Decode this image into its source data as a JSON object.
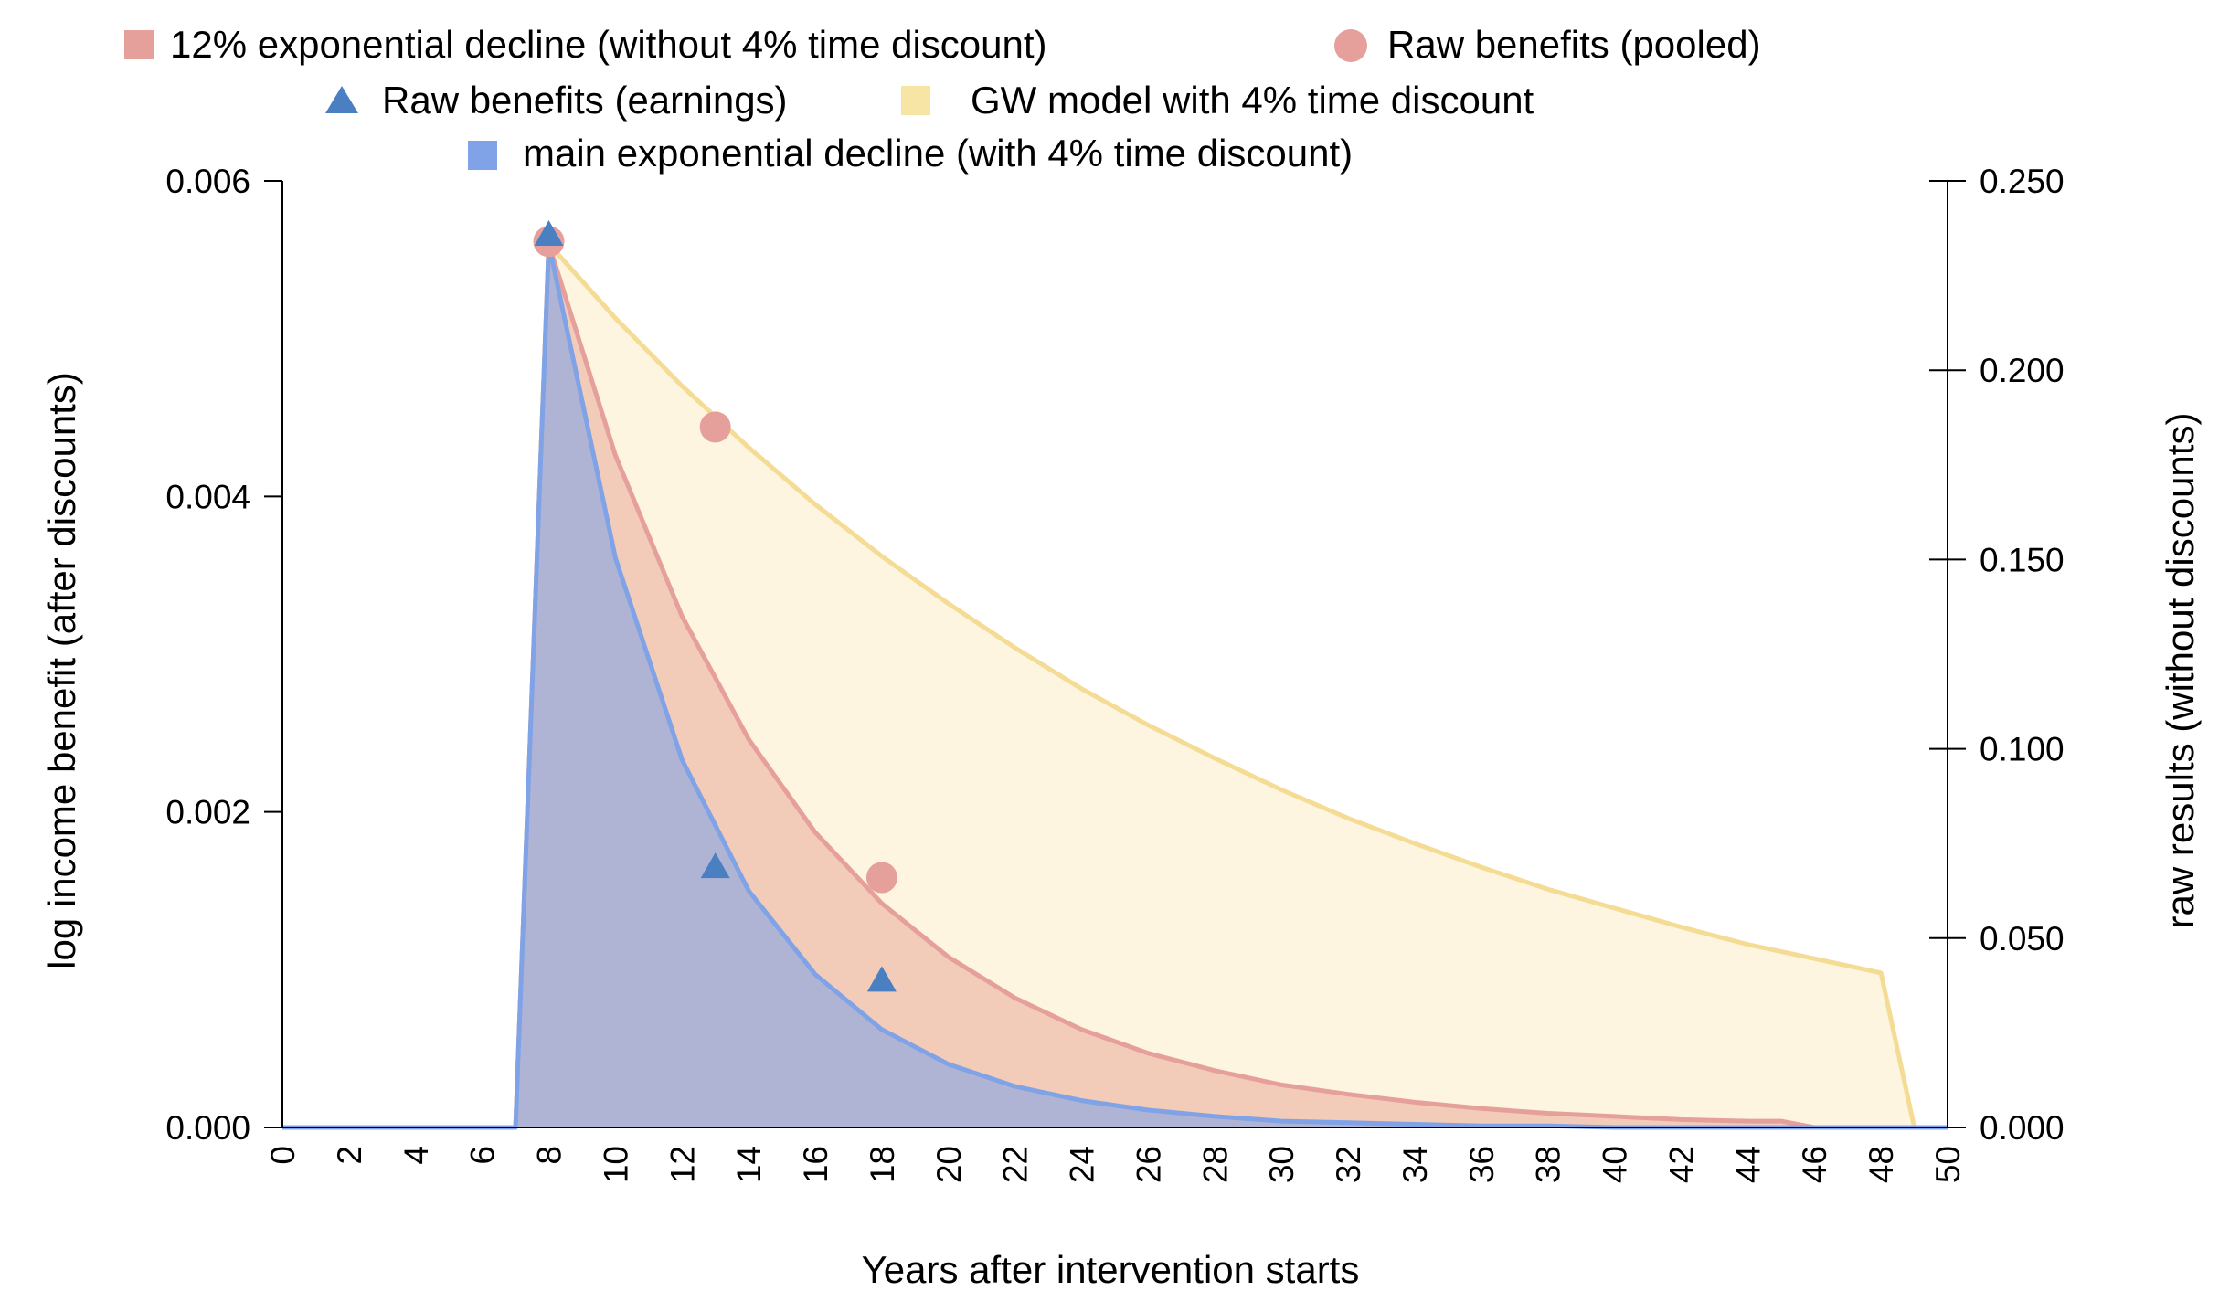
{
  "chart_data": {
    "type": "area",
    "xlabel": "Years after intervention starts",
    "ylabel_left": "log income benefit (after discounts)",
    "ylabel_right": "raw results (without discounts)",
    "xlim": [
      0,
      50
    ],
    "ylim_left": [
      0,
      0.006
    ],
    "ylim_right": [
      0,
      0.25
    ],
    "x_ticks": [
      0,
      2,
      4,
      6,
      8,
      10,
      12,
      14,
      16,
      18,
      20,
      22,
      24,
      26,
      28,
      30,
      32,
      34,
      36,
      38,
      40,
      42,
      44,
      46,
      48,
      50
    ],
    "y_ticks_left": [
      "0.000",
      "0.002",
      "0.004",
      "0.006"
    ],
    "y_ticks_left_values": [
      0,
      0.002,
      0.004,
      0.006
    ],
    "y_ticks_right": [
      "0.000",
      "0.050",
      "0.100",
      "0.150",
      "0.200",
      "0.250"
    ],
    "y_ticks_right_values": [
      0,
      0.05,
      0.1,
      0.15,
      0.2,
      0.25
    ],
    "grid": false,
    "legend_position": "top",
    "legend": [
      {
        "label": "12% exponential decline (without 4% time discount)",
        "marker": "square",
        "color": "#e6a09c"
      },
      {
        "label": "Raw benefits (pooled)",
        "marker": "circle",
        "color": "#e6a09c"
      },
      {
        "label": "Raw benefits  (earnings)",
        "marker": "triangle",
        "color": "#4a7fc1"
      },
      {
        "label": "GW model with 4% time discount",
        "marker": "square",
        "color": "#f6e5a4"
      },
      {
        "label": "main exponential decline (with 4% time discount)",
        "marker": "square",
        "color": "#7fa3e6"
      }
    ],
    "series": [
      {
        "name": "GW model with 4% time discount",
        "kind": "area",
        "axis": "left",
        "stroke": "#f5dc95",
        "fill": "#fdf5df",
        "x": [
          0,
          7,
          8,
          10,
          12,
          14,
          16,
          18,
          20,
          22,
          24,
          26,
          28,
          30,
          32,
          34,
          36,
          38,
          40,
          42,
          44,
          46,
          48,
          49,
          50
        ],
        "y": [
          0,
          0,
          0.0056,
          0.00513,
          0.0047,
          0.00431,
          0.00395,
          0.00362,
          0.00332,
          0.00304,
          0.00278,
          0.00255,
          0.00234,
          0.00214,
          0.00196,
          0.0018,
          0.00165,
          0.00151,
          0.00139,
          0.00127,
          0.00116,
          0.00107,
          0.00098,
          0,
          0
        ]
      },
      {
        "name": "12% exponential decline (without 4% time discount)",
        "kind": "area",
        "axis": "left",
        "stroke": "#e6a09c",
        "fill": "#f2cbb9",
        "x": [
          0,
          7,
          8,
          10,
          12,
          14,
          16,
          18,
          20,
          22,
          24,
          26,
          28,
          30,
          32,
          34,
          36,
          38,
          40,
          42,
          44,
          45,
          46,
          50
        ],
        "y": [
          0,
          0,
          0.0056,
          0.00426,
          0.00324,
          0.00246,
          0.00187,
          0.00142,
          0.00108,
          0.00082,
          0.00062,
          0.00047,
          0.00036,
          0.00027,
          0.00021,
          0.00016,
          0.00012,
          9e-05,
          7e-05,
          5e-05,
          4e-05,
          4e-05,
          0,
          0
        ]
      },
      {
        "name": "main exponential decline (with 4% time discount)",
        "kind": "area",
        "axis": "left",
        "stroke": "#7fa3e6",
        "fill": "#b0b4d4",
        "x": [
          0,
          7,
          8,
          10,
          12,
          14,
          16,
          18,
          20,
          22,
          24,
          26,
          28,
          30,
          32,
          34,
          36,
          38,
          40,
          42,
          44,
          46,
          48,
          50
        ],
        "y": [
          0,
          0,
          0.0056,
          0.00361,
          0.00233,
          0.0015,
          0.00097,
          0.00062,
          0.0004,
          0.00026,
          0.00017,
          0.00011,
          7e-05,
          4e-05,
          3e-05,
          2e-05,
          1e-05,
          1e-05,
          0,
          0,
          0,
          0,
          0,
          0
        ]
      },
      {
        "name": "Raw benefits (pooled)",
        "kind": "scatter",
        "marker": "circle",
        "axis": "right",
        "color": "#e6a09c",
        "x": [
          8,
          13,
          18
        ],
        "y": [
          0.234,
          0.185,
          0.066
        ]
      },
      {
        "name": "Raw benefits  (earnings)",
        "kind": "scatter",
        "marker": "triangle",
        "axis": "right",
        "color": "#4a7fc1",
        "x": [
          8,
          13,
          18
        ],
        "y": [
          0.236,
          0.069,
          0.039
        ]
      }
    ]
  }
}
